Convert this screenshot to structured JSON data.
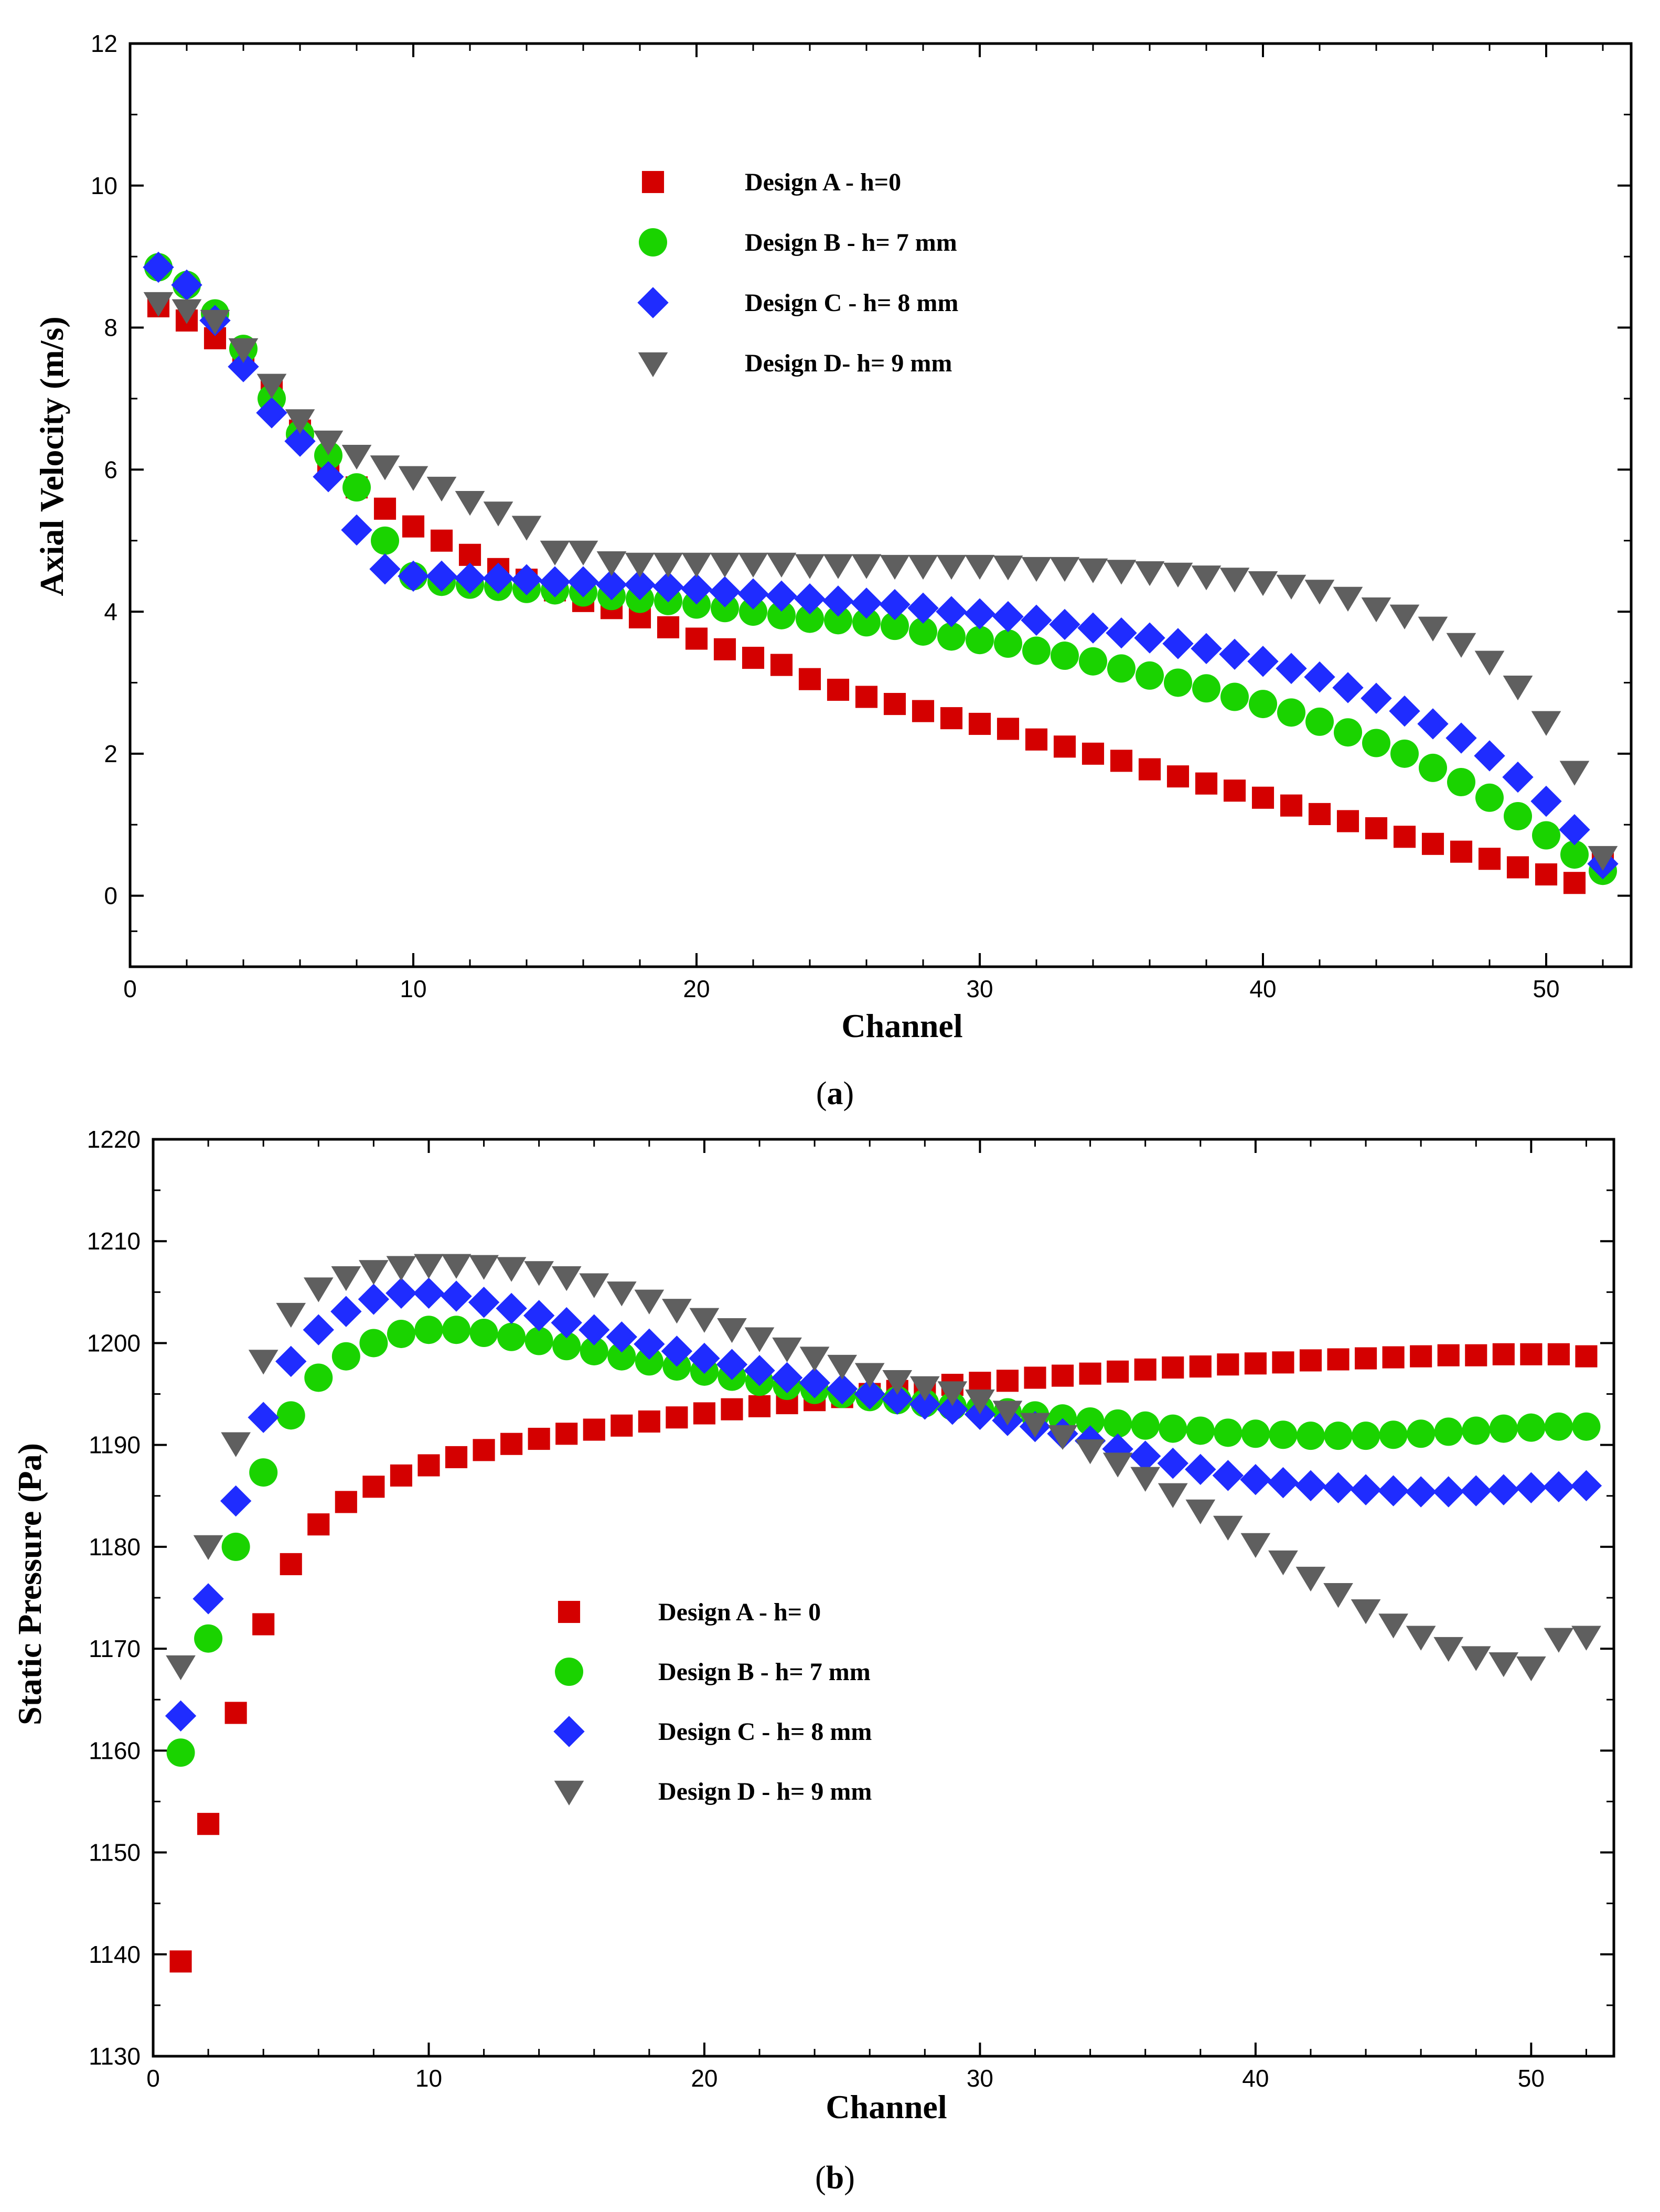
{
  "chart_data": [
    {
      "type": "scatter",
      "panel": "a",
      "caption_letter": "a",
      "xlabel": "Channel",
      "ylabel": "Axial Velocity (m/s)",
      "xlim": [
        0,
        53
      ],
      "ylim": [
        -1,
        12
      ],
      "xticks": [
        0,
        10,
        20,
        30,
        40,
        50
      ],
      "yticks": [
        0,
        2,
        4,
        6,
        8,
        10,
        12
      ],
      "legend_position": "upper-center",
      "x": [
        1,
        2,
        3,
        4,
        5,
        6,
        7,
        8,
        9,
        10,
        11,
        12,
        13,
        14,
        15,
        16,
        17,
        18,
        19,
        20,
        21,
        22,
        23,
        24,
        25,
        26,
        27,
        28,
        29,
        30,
        31,
        32,
        33,
        34,
        35,
        36,
        37,
        38,
        39,
        40,
        41,
        42,
        43,
        44,
        45,
        46,
        47,
        48,
        49,
        50,
        51,
        52
      ],
      "series": [
        {
          "name": "Design A - h=0",
          "marker": "square",
          "color": "#d40000",
          "values": [
            8.3,
            8.1,
            7.85,
            7.55,
            7.1,
            6.55,
            6.1,
            5.75,
            5.45,
            5.2,
            5.0,
            4.8,
            4.6,
            4.45,
            4.3,
            4.15,
            4.05,
            3.92,
            3.78,
            3.62,
            3.47,
            3.35,
            3.25,
            3.05,
            2.9,
            2.8,
            2.7,
            2.6,
            2.5,
            2.42,
            2.35,
            2.2,
            2.1,
            2.0,
            1.9,
            1.78,
            1.68,
            1.58,
            1.48,
            1.38,
            1.27,
            1.15,
            1.05,
            0.95,
            0.83,
            0.73,
            0.62,
            0.52,
            0.4,
            0.3,
            0.18,
            0.45
          ]
        },
        {
          "name": "Design B - h= 7 mm",
          "marker": "circle",
          "color": "#1ad300",
          "values": [
            8.85,
            8.6,
            8.2,
            7.7,
            7.0,
            6.5,
            6.2,
            5.75,
            5.0,
            4.5,
            4.42,
            4.38,
            4.35,
            4.32,
            4.3,
            4.27,
            4.22,
            4.18,
            4.15,
            4.1,
            4.05,
            4.0,
            3.95,
            3.9,
            3.88,
            3.85,
            3.8,
            3.72,
            3.65,
            3.6,
            3.55,
            3.45,
            3.38,
            3.3,
            3.2,
            3.1,
            3.0,
            2.92,
            2.8,
            2.7,
            2.58,
            2.45,
            2.3,
            2.15,
            2.0,
            1.8,
            1.6,
            1.38,
            1.12,
            0.85,
            0.58,
            0.35
          ]
        },
        {
          "name": "Design C - h= 8 mm",
          "marker": "diamond",
          "color": "#1f2cff",
          "values": [
            8.85,
            8.6,
            8.1,
            7.45,
            6.8,
            6.4,
            5.9,
            5.15,
            4.6,
            4.5,
            4.5,
            4.47,
            4.47,
            4.45,
            4.42,
            4.42,
            4.38,
            4.38,
            4.35,
            4.32,
            4.28,
            4.25,
            4.22,
            4.18,
            4.15,
            4.12,
            4.1,
            4.05,
            4.0,
            3.97,
            3.93,
            3.88,
            3.82,
            3.77,
            3.7,
            3.63,
            3.55,
            3.48,
            3.4,
            3.3,
            3.2,
            3.08,
            2.93,
            2.78,
            2.6,
            2.42,
            2.22,
            1.97,
            1.67,
            1.33,
            0.93,
            0.45
          ]
        },
        {
          "name": "Design D- h= 9 mm",
          "marker": "triangle-down",
          "color": "#5f5f5f",
          "values": [
            8.35,
            8.25,
            8.1,
            7.7,
            7.2,
            6.7,
            6.4,
            6.2,
            6.05,
            5.9,
            5.75,
            5.55,
            5.4,
            5.2,
            4.85,
            4.85,
            4.7,
            4.68,
            4.68,
            4.68,
            4.68,
            4.68,
            4.68,
            4.66,
            4.66,
            4.66,
            4.65,
            4.65,
            4.65,
            4.65,
            4.64,
            4.62,
            4.62,
            4.6,
            4.58,
            4.56,
            4.54,
            4.5,
            4.47,
            4.42,
            4.37,
            4.3,
            4.2,
            4.05,
            3.95,
            3.78,
            3.55,
            3.3,
            2.95,
            2.45,
            1.75,
            0.55
          ]
        }
      ]
    },
    {
      "type": "scatter",
      "panel": "b",
      "caption_letter": "b",
      "xlabel": "Channel",
      "ylabel": "Static Pressure (Pa)",
      "xlim": [
        0,
        53
      ],
      "ylim": [
        1130,
        1220
      ],
      "xticks": [
        0,
        10,
        20,
        30,
        40,
        50
      ],
      "yticks": [
        1130,
        1140,
        1150,
        1160,
        1170,
        1180,
        1190,
        1200,
        1210,
        1220
      ],
      "legend_position": "lower-center",
      "x": [
        1,
        2,
        3,
        4,
        5,
        6,
        7,
        8,
        9,
        10,
        11,
        12,
        13,
        14,
        15,
        16,
        17,
        18,
        19,
        20,
        21,
        22,
        23,
        24,
        25,
        26,
        27,
        28,
        29,
        30,
        31,
        32,
        33,
        34,
        35,
        36,
        37,
        38,
        39,
        40,
        41,
        42,
        43,
        44,
        45,
        46,
        47,
        48,
        49,
        50,
        51,
        52
      ],
      "series": [
        {
          "name": "Design A - h= 0",
          "marker": "square",
          "color": "#d40000",
          "values": [
            1139.3,
            1152.8,
            1163.7,
            1172.4,
            1178.3,
            1182.2,
            1184.4,
            1185.9,
            1187.0,
            1188.0,
            1188.8,
            1189.5,
            1190.1,
            1190.6,
            1191.1,
            1191.5,
            1191.9,
            1192.3,
            1192.7,
            1193.1,
            1193.5,
            1193.8,
            1194.1,
            1194.4,
            1194.7,
            1195.0,
            1195.3,
            1195.6,
            1195.9,
            1196.1,
            1196.3,
            1196.6,
            1196.8,
            1197.0,
            1197.2,
            1197.4,
            1197.6,
            1197.7,
            1197.9,
            1198.0,
            1198.1,
            1198.3,
            1198.4,
            1198.5,
            1198.6,
            1198.7,
            1198.8,
            1198.8,
            1198.9,
            1198.9,
            1198.9,
            1198.7
          ]
        },
        {
          "name": "Design B - h= 7 mm",
          "marker": "circle",
          "color": "#1ad300",
          "values": [
            1159.8,
            1171.0,
            1180.0,
            1187.3,
            1192.9,
            1196.6,
            1198.7,
            1200.0,
            1200.9,
            1201.3,
            1201.3,
            1201.0,
            1200.6,
            1200.2,
            1199.7,
            1199.2,
            1198.7,
            1198.2,
            1197.7,
            1197.2,
            1196.7,
            1196.2,
            1195.8,
            1195.4,
            1195.0,
            1194.7,
            1194.4,
            1194.1,
            1193.8,
            1193.5,
            1193.2,
            1192.9,
            1192.6,
            1192.3,
            1192.1,
            1191.9,
            1191.6,
            1191.4,
            1191.2,
            1191.1,
            1191.0,
            1190.9,
            1190.9,
            1190.9,
            1191.0,
            1191.1,
            1191.3,
            1191.4,
            1191.6,
            1191.7,
            1191.8,
            1191.8
          ]
        },
        {
          "name": "Design C - h= 8 mm",
          "marker": "diamond",
          "color": "#1f2cff",
          "values": [
            1163.4,
            1174.9,
            1184.5,
            1192.7,
            1198.2,
            1201.3,
            1203.1,
            1204.3,
            1204.9,
            1204.9,
            1204.6,
            1204.0,
            1203.4,
            1202.7,
            1202.0,
            1201.3,
            1200.6,
            1199.9,
            1199.2,
            1198.5,
            1197.9,
            1197.3,
            1196.6,
            1196.1,
            1195.5,
            1195.0,
            1194.5,
            1194.0,
            1193.5,
            1193.0,
            1192.4,
            1191.8,
            1191.1,
            1190.4,
            1189.6,
            1188.9,
            1188.2,
            1187.6,
            1187.0,
            1186.6,
            1186.3,
            1186.0,
            1185.8,
            1185.6,
            1185.5,
            1185.4,
            1185.4,
            1185.5,
            1185.6,
            1185.8,
            1185.9,
            1186.0
          ]
        },
        {
          "name": "Design D - h= 9 mm",
          "marker": "triangle-down",
          "color": "#5f5f5f",
          "values": [
            1168.3,
            1180.1,
            1190.2,
            1198.3,
            1202.9,
            1205.4,
            1206.5,
            1207.1,
            1207.5,
            1207.7,
            1207.7,
            1207.6,
            1207.4,
            1207.0,
            1206.5,
            1205.8,
            1205.0,
            1204.2,
            1203.3,
            1202.4,
            1201.4,
            1200.5,
            1199.5,
            1198.6,
            1197.8,
            1197.0,
            1196.3,
            1195.7,
            1195.2,
            1194.4,
            1193.3,
            1192.1,
            1190.9,
            1189.5,
            1188.2,
            1186.8,
            1185.2,
            1183.6,
            1182.0,
            1180.3,
            1178.6,
            1177.0,
            1175.4,
            1173.8,
            1172.4,
            1171.2,
            1170.1,
            1169.2,
            1168.6,
            1168.2,
            1171.0,
            1171.2
          ]
        }
      ]
    }
  ]
}
